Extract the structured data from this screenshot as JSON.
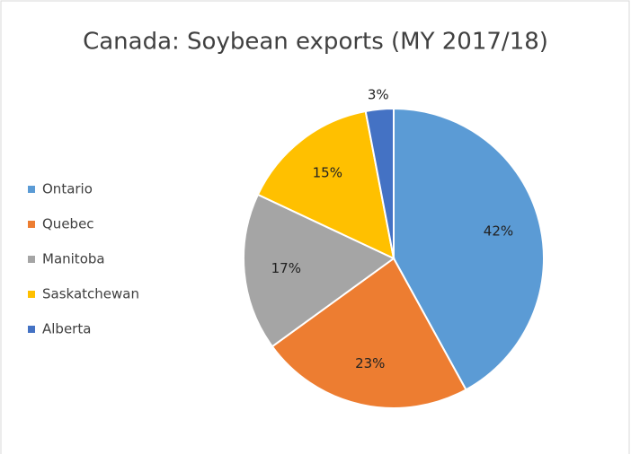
{
  "chart_data": {
    "type": "pie",
    "title": "Canada: Soybean exports (MY 2017/18)",
    "categories": [
      "Ontario",
      "Quebec",
      "Manitoba",
      "Saskatchewan",
      "Alberta"
    ],
    "values": [
      42,
      23,
      17,
      15,
      3
    ],
    "value_labels": [
      "42%",
      "23%",
      "17%",
      "15%",
      "3%"
    ],
    "colors": [
      "#5b9bd5",
      "#ed7d31",
      "#a5a5a5",
      "#ffc000",
      "#4472c4"
    ],
    "legend": "left"
  }
}
